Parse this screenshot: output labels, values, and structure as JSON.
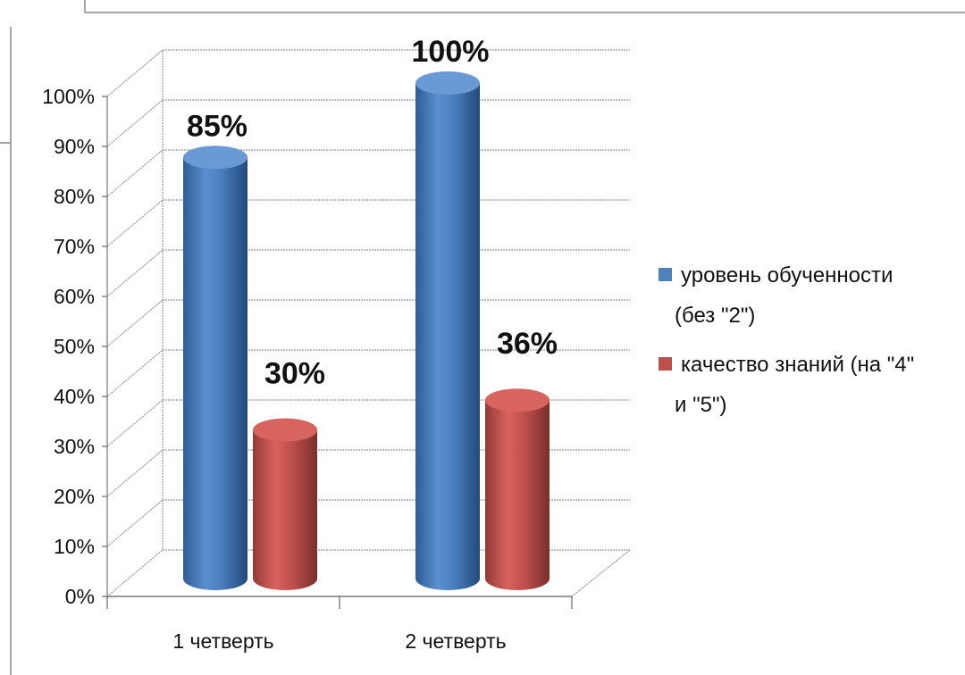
{
  "chart_data": {
    "type": "bar",
    "style": "3d-cylinder",
    "categories": [
      "1 четверть",
      "2 четверть"
    ],
    "series": [
      {
        "name": "уровень обученности (без \"2\")",
        "values": [
          85,
          100
        ],
        "labels": [
          "85%",
          "100%"
        ],
        "color": "#4f81bd"
      },
      {
        "name": "качество знаний (на \"4\" и \"5\")",
        "values": [
          30,
          36
        ],
        "labels": [
          "30%",
          "36%"
        ],
        "color": "#c0504d"
      }
    ],
    "y_ticks": [
      "0%",
      "10%",
      "20%",
      "30%",
      "40%",
      "50%",
      "60%",
      "70%",
      "80%",
      "90%",
      "100%"
    ],
    "ylim": [
      0,
      100
    ],
    "grid": true,
    "legend_position": "right"
  }
}
